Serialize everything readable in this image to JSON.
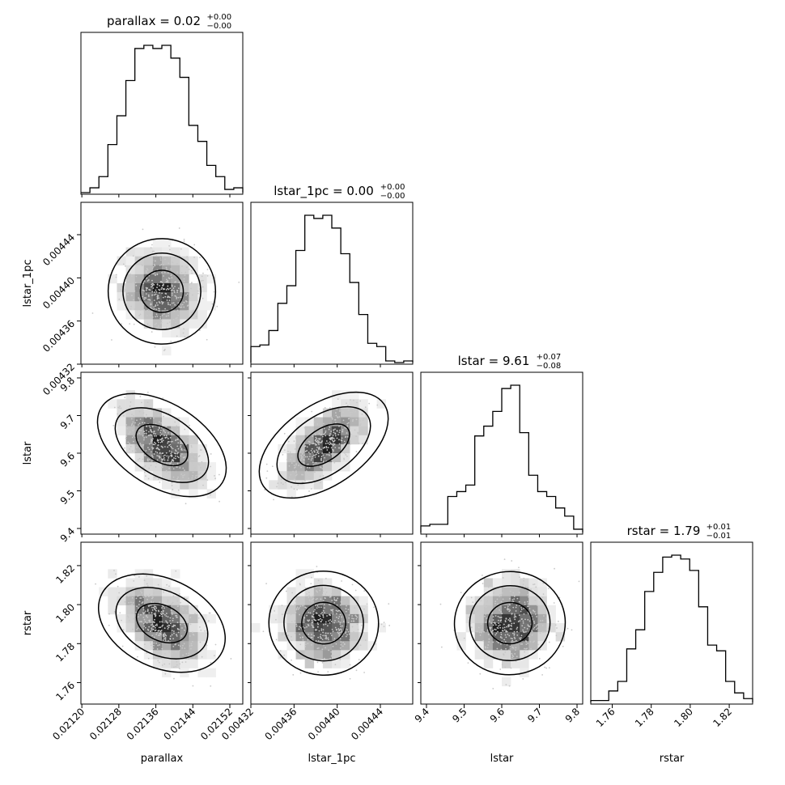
{
  "chart_data": {
    "type": "corner",
    "parameters": [
      "parallax",
      "lstar_1pc",
      "lstar",
      "rstar"
    ],
    "xlabels": [
      "parallax",
      "lstar_1pc",
      "lstar",
      "rstar"
    ],
    "ylabels": [
      "",
      "lstar_1pc",
      "lstar",
      "rstar"
    ],
    "titles": [
      {
        "name": "parallax",
        "value": "0.02",
        "plus": "+0.00",
        "minus": "−0.00"
      },
      {
        "name": "lstar_1pc",
        "value": "0.00",
        "plus": "+0.00",
        "minus": "−0.00"
      },
      {
        "name": "lstar",
        "value": "9.61",
        "plus": "+0.07",
        "minus": "−0.08"
      },
      {
        "name": "rstar",
        "value": "1.79",
        "plus": "+0.01",
        "minus": "−0.01"
      }
    ],
    "ranges": [
      [
        0.021198,
        0.021548
      ],
      [
        0.00432,
        0.00447
      ],
      [
        9.385,
        9.815
      ],
      [
        1.749,
        1.832
      ]
    ],
    "ticks": [
      [
        "0.02120",
        "0.02128",
        "0.02136",
        "0.02144",
        "0.02152"
      ],
      [
        "0.00432",
        "0.00436",
        "0.00440",
        "0.00444"
      ],
      [
        "9.4",
        "9.5",
        "9.6",
        "9.7",
        "9.8"
      ],
      [
        "1.76",
        "1.78",
        "1.80",
        "1.82"
      ]
    ],
    "tick_values": [
      [
        0.0212,
        0.02128,
        0.02136,
        0.02144,
        0.02152
      ],
      [
        0.00432,
        0.00436,
        0.0044,
        0.00444
      ],
      [
        9.4,
        9.5,
        9.6,
        9.7,
        9.8
      ],
      [
        1.76,
        1.78,
        1.8,
        1.82
      ]
    ],
    "histograms": [
      [
        0,
        3,
        10,
        30,
        48,
        70,
        90,
        92,
        90,
        92,
        84,
        72,
        42,
        32,
        17,
        10,
        2,
        3
      ],
      [
        10,
        11,
        20,
        37,
        48,
        70,
        92,
        90,
        92,
        84,
        68,
        50,
        30,
        12,
        10,
        1,
        0,
        1
      ],
      [
        4,
        5,
        5,
        22,
        25,
        29,
        59,
        65,
        74,
        88,
        90,
        61,
        35,
        25,
        22,
        15,
        10,
        2
      ],
      [
        1,
        1,
        6,
        11,
        28,
        38,
        58,
        68,
        76,
        77,
        75,
        69,
        50,
        30,
        27,
        11,
        5,
        2
      ]
    ],
    "correlations": {
      "lstar_1pc|parallax": -0.02,
      "lstar|parallax": -0.62,
      "lstar|lstar_1pc": 0.68,
      "rstar|parallax": -0.47,
      "rstar|lstar_1pc": -0.06,
      "rstar|lstar": 0.08
    }
  }
}
